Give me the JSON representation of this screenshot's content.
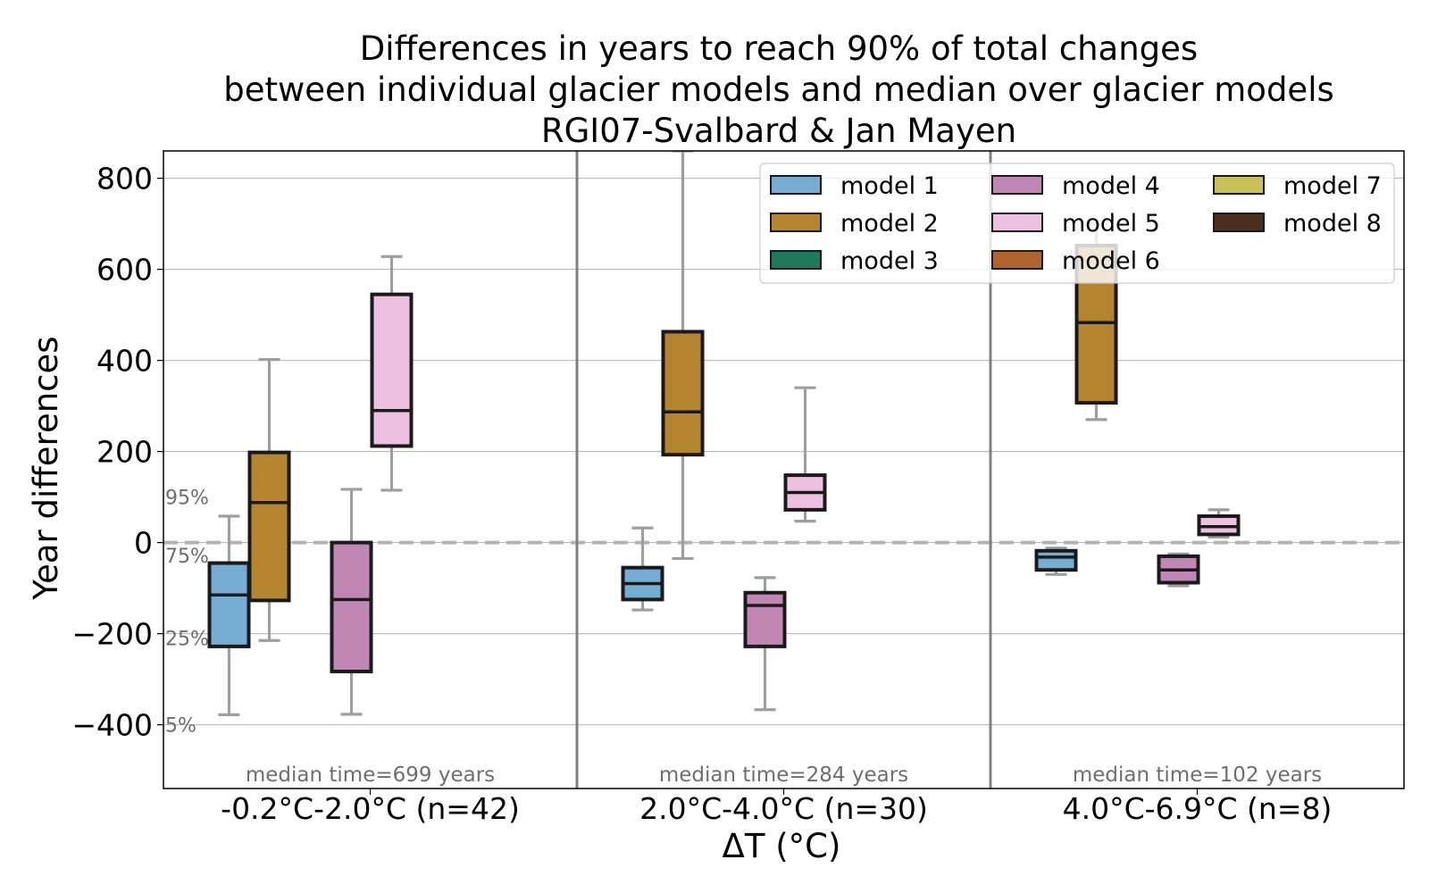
{
  "chart_data": {
    "type": "box",
    "title": [
      "Differences in years to reach 90% of total changes",
      "between individual glacier models and median over glacier models",
      "RGI07-Svalbard & Jan Mayen"
    ],
    "xlabel": "ΔT (°C)",
    "ylabel": "Year differences",
    "ylim": [
      -540,
      860
    ],
    "yticks": [
      -400,
      -200,
      0,
      200,
      400,
      600,
      800
    ],
    "ytick_labels": [
      "−400",
      "−200",
      "0",
      "200",
      "400",
      "600",
      "800"
    ],
    "grid": true,
    "legend_position": "top-right",
    "reference_line": 0,
    "percentile_labels": [
      {
        "label": "95%",
        "value": 100
      },
      {
        "label": "75%",
        "value": -28
      },
      {
        "label": "25%",
        "value": -210
      },
      {
        "label": "5%",
        "value": -400
      }
    ],
    "series": [
      {
        "name": "model 1",
        "color": "#74add1"
      },
      {
        "name": "model 2",
        "color": "#b5842e"
      },
      {
        "name": "model 3",
        "color": "#1f7a5c"
      },
      {
        "name": "model 4",
        "color": "#c087b4"
      },
      {
        "name": "model 5",
        "color": "#ecc0de"
      },
      {
        "name": "model 6",
        "color": "#b1652e"
      },
      {
        "name": "model 7",
        "color": "#c9c25a"
      },
      {
        "name": "model 8",
        "color": "#4b2e1b"
      }
    ],
    "categories": [
      {
        "label": "-0.2°C-2.0°C (n=42)",
        "annotation": "median time=699 years",
        "boxes": [
          {
            "model": "model 1",
            "whisker_low": -378,
            "q1": -228,
            "median": -115,
            "q3": -45,
            "whisker_high": 58
          },
          {
            "model": "model 2",
            "whisker_low": -215,
            "q1": -127,
            "median": 88,
            "q3": 198,
            "whisker_high": 402
          },
          {
            "model": "model 4",
            "whisker_low": -377,
            "q1": -283,
            "median": -125,
            "q3": 0,
            "whisker_high": 117
          },
          {
            "model": "model 5",
            "whisker_low": 115,
            "q1": 212,
            "median": 290,
            "q3": 545,
            "whisker_high": 628
          }
        ]
      },
      {
        "label": "2.0°C-4.0°C (n=30)",
        "annotation": "median time=284 years",
        "boxes": [
          {
            "model": "model 1",
            "whisker_low": -148,
            "q1": -125,
            "median": -90,
            "q3": -55,
            "whisker_high": 32
          },
          {
            "model": "model 2",
            "whisker_low": -35,
            "q1": 193,
            "median": 287,
            "q3": 463,
            "whisker_high": 860
          },
          {
            "model": "model 4",
            "whisker_low": -367,
            "q1": -228,
            "median": -138,
            "q3": -110,
            "whisker_high": -77
          },
          {
            "model": "model 5",
            "whisker_low": 47,
            "q1": 72,
            "median": 110,
            "q3": 148,
            "whisker_high": 340
          }
        ]
      },
      {
        "label": "4.0°C-6.9°C (n=8)",
        "annotation": "median time=102 years",
        "boxes": [
          {
            "model": "model 1",
            "whisker_low": -70,
            "q1": -60,
            "median": -32,
            "q3": -18,
            "whisker_high": -12
          },
          {
            "model": "model 2",
            "whisker_low": 270,
            "q1": 307,
            "median": 483,
            "q3": 652,
            "whisker_high": 700
          },
          {
            "model": "model 4",
            "whisker_low": -95,
            "q1": -88,
            "median": -60,
            "q3": -30,
            "whisker_high": -25
          },
          {
            "model": "model 5",
            "whisker_low": 12,
            "q1": 18,
            "median": 35,
            "q3": 58,
            "whisker_high": 72
          }
        ]
      }
    ]
  }
}
